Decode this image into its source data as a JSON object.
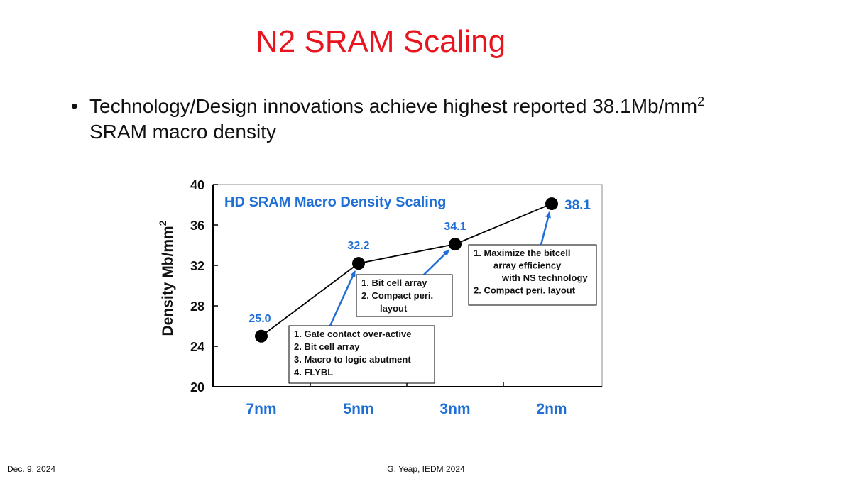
{
  "slide": {
    "title": "N2 SRAM Scaling",
    "bullet_text": "Technology/Design innovations achieve highest reported 38.1Mb/mm",
    "bullet_superscript": "2",
    "bullet_text_line2": "SRAM macro density",
    "footer_date": "Dec. 9, 2024",
    "footer_credit": "G. Yeap, IEDM 2024"
  },
  "colors": {
    "title": "#e8141e",
    "chart_blue": "#1f6fd6",
    "marker": "#000000"
  },
  "chart_data": {
    "type": "line",
    "title": "HD SRAM Macro Density Scaling",
    "ylabel": "Density Mb/mm",
    "ylabel_superscript": "2",
    "xlabel": "",
    "categories": [
      "7nm",
      "5nm",
      "3nm",
      "2nm"
    ],
    "ylim": [
      20,
      40
    ],
    "yticks": [
      20,
      24,
      28,
      32,
      36,
      40
    ],
    "series": [
      {
        "values": [
          25.0,
          32.2,
          34.1,
          38.1
        ]
      }
    ],
    "data_labels": [
      "25.0",
      "32.2",
      "34.1",
      "38.1"
    ],
    "annotations": [
      {
        "target_index": 1,
        "lines": [
          "1. Gate contact over-active",
          "2. Bit cell array",
          "3. Macro to logic abutment",
          "4. FLYBL"
        ]
      },
      {
        "target_index": 2,
        "lines": [
          "1. Bit cell array",
          "2. Compact peri.",
          "layout"
        ]
      },
      {
        "target_index": 3,
        "lines": [
          "1. Maximize the bitcell",
          "array efficiency",
          "with NS technology",
          "2. Compact peri. layout"
        ]
      }
    ],
    "grid": false,
    "legend": "none"
  }
}
